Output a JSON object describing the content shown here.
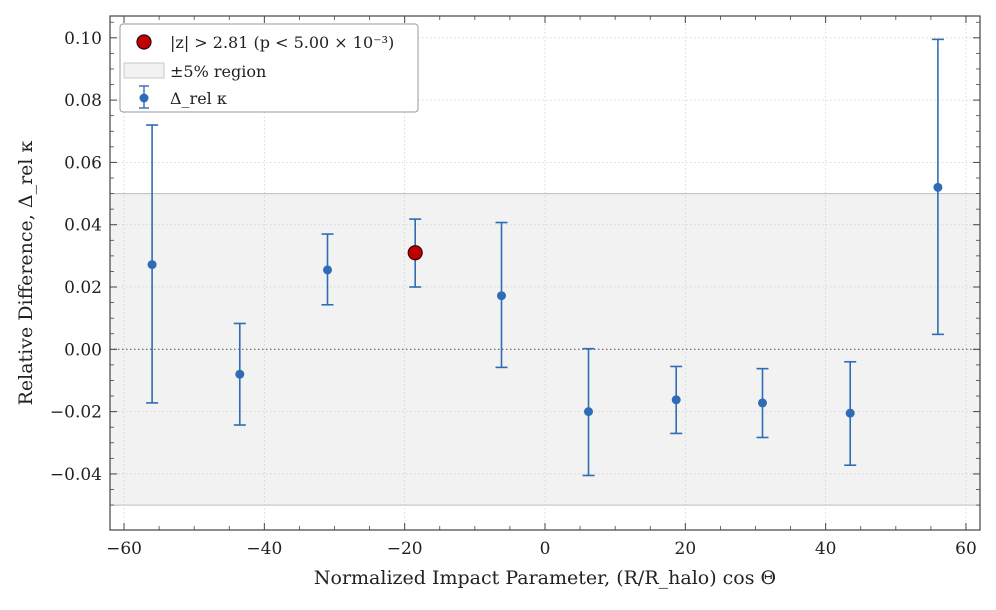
{
  "chart_data": {
    "type": "scatter",
    "title": "",
    "xlabel": "Normalized Impact Parameter, (R/R_halo) cos Θ",
    "ylabel": "Relative Difference, Δ_rel κ",
    "xlim": [
      -62,
      62
    ],
    "ylim": [
      -0.058,
      0.107
    ],
    "xticks": [
      -60,
      -40,
      -20,
      0,
      20,
      40,
      60
    ],
    "xtick_labels": [
      "−60",
      "−40",
      "−20",
      "0",
      "20",
      "40",
      "60"
    ],
    "yticks": [
      -0.04,
      -0.02,
      0.0,
      0.02,
      0.04,
      0.06,
      0.08,
      0.1
    ],
    "ytick_labels": [
      "−0.04",
      "−0.02",
      "0.00",
      "0.02",
      "0.04",
      "0.06",
      "0.08",
      "0.10"
    ],
    "band": {
      "lower": -0.05,
      "upper": 0.05,
      "label": "±5% region",
      "color": "#f2f2f2"
    },
    "reference_line": {
      "y": 0.0,
      "style": "dotted"
    },
    "grid": true,
    "legend_position": "top-left",
    "series": [
      {
        "name": "Δ_rel κ",
        "color": "#2e6db5",
        "points": [
          {
            "x": -56.0,
            "y": 0.0272,
            "err_low": -0.0172,
            "err_high": 0.072
          },
          {
            "x": -43.5,
            "y": -0.008,
            "err_low": -0.0243,
            "err_high": 0.0083
          },
          {
            "x": -31.0,
            "y": 0.0255,
            "err_low": 0.0143,
            "err_high": 0.037
          },
          {
            "x": -18.5,
            "y": 0.031,
            "err_low": 0.02,
            "err_high": 0.0418
          },
          {
            "x": -6.2,
            "y": 0.0172,
            "err_low": -0.0058,
            "err_high": 0.0407
          },
          {
            "x": 6.2,
            "y": -0.02,
            "err_low": -0.0405,
            "err_high": 0.0002
          },
          {
            "x": 18.7,
            "y": -0.0162,
            "err_low": -0.027,
            "err_high": -0.0055
          },
          {
            "x": 31.0,
            "y": -0.0172,
            "err_low": -0.0283,
            "err_high": -0.0062
          },
          {
            "x": 43.5,
            "y": -0.0205,
            "err_low": -0.0372,
            "err_high": -0.004
          },
          {
            "x": 56.0,
            "y": 0.052,
            "err_low": 0.0048,
            "err_high": 0.0995
          }
        ]
      }
    ],
    "highlight": {
      "label": "|z| > 2.81 (p < 5.00 × 10⁻³)",
      "color": "#c00000",
      "x": -18.5,
      "y": 0.031
    },
    "legend": [
      {
        "kind": "highlight-marker",
        "label": "|z| > 2.81 (p < 5.00 × 10⁻³)"
      },
      {
        "kind": "band-patch",
        "label": "±5% region"
      },
      {
        "kind": "errorbar-marker",
        "label": "Δ_rel κ"
      }
    ]
  }
}
